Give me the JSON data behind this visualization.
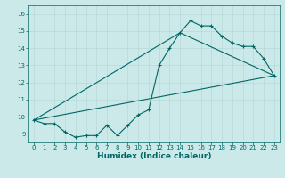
{
  "xlabel": "Humidex (Indice chaleur)",
  "ylabel": "",
  "bg_color": "#cce9e9",
  "line_color": "#006666",
  "grid_color": "#b8d8d8",
  "xlim": [
    -0.5,
    23.5
  ],
  "ylim": [
    8.5,
    16.5
  ],
  "xticks": [
    0,
    1,
    2,
    3,
    4,
    5,
    6,
    7,
    8,
    9,
    10,
    11,
    12,
    13,
    14,
    15,
    16,
    17,
    18,
    19,
    20,
    21,
    22,
    23
  ],
  "yticks": [
    9,
    10,
    11,
    12,
    13,
    14,
    15,
    16
  ],
  "line1_x": [
    0,
    1,
    2,
    3,
    4,
    5,
    6,
    7,
    8,
    9,
    10,
    11,
    12,
    13,
    14,
    15,
    16,
    17,
    18,
    19,
    20,
    21,
    22,
    23
  ],
  "line1_y": [
    9.8,
    9.6,
    9.6,
    9.1,
    8.8,
    8.9,
    8.9,
    9.5,
    8.9,
    9.5,
    10.1,
    10.4,
    13.0,
    14.0,
    14.9,
    15.6,
    15.3,
    15.3,
    14.7,
    14.3,
    14.1,
    14.1,
    13.4,
    12.4
  ],
  "line2_x": [
    0,
    23
  ],
  "line2_y": [
    9.8,
    12.4
  ],
  "line3_x": [
    0,
    14
  ],
  "line3_y": [
    9.8,
    14.9
  ],
  "line4_x": [
    14,
    23
  ],
  "line4_y": [
    14.9,
    12.4
  ]
}
